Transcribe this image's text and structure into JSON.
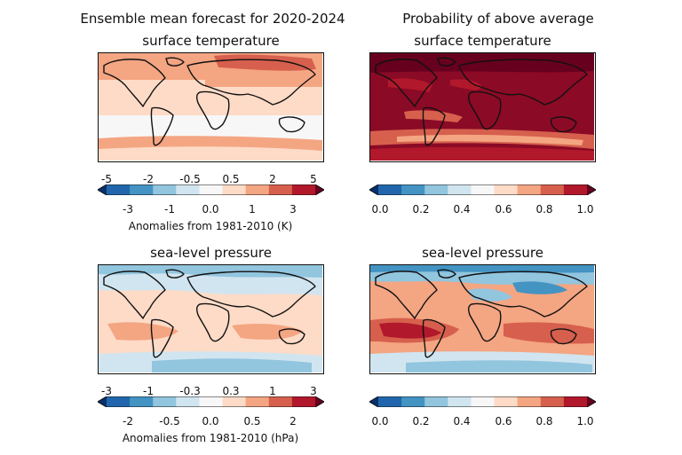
{
  "titles": {
    "left_heading": "Ensemble mean forecast for 2020-2024",
    "right_heading": "Probability of above average",
    "temp_left": "surface temperature",
    "temp_right": "surface temperature",
    "slp_left": "sea-level pressure",
    "slp_right": "sea-level pressure"
  },
  "colorbars": {
    "temp_anomaly": {
      "upper_ticks": [
        "-5",
        "-2",
        "-0.5",
        "0.5",
        "2",
        "5"
      ],
      "lower_ticks": [
        "-3",
        "-1",
        "0.0",
        "1",
        "3"
      ],
      "label": "Anomalies from 1981-2010 (K)"
    },
    "slp_anomaly": {
      "upper_ticks": [
        "-3",
        "-1",
        "-0.3",
        "0.3",
        "1",
        "3"
      ],
      "lower_ticks": [
        "-2",
        "-0.5",
        "0.0",
        "0.5",
        "2"
      ],
      "label": "Anomalies from 1981-2010 (hPa)"
    },
    "probability": {
      "ticks": [
        "0.0",
        "0.2",
        "0.4",
        "0.6",
        "0.8",
        "1.0"
      ]
    }
  },
  "palette": [
    "#08306b",
    "#2166ac",
    "#4393c3",
    "#92c5de",
    "#d1e5f0",
    "#f7f7f7",
    "#fddbc7",
    "#f4a582",
    "#d6604d",
    "#b2182b",
    "#67001f"
  ]
}
